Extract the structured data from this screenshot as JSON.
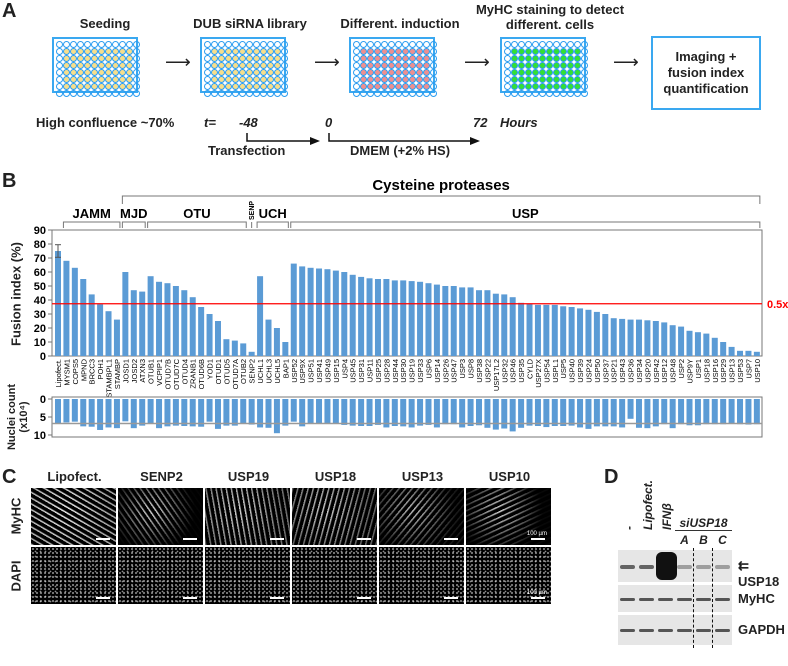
{
  "panelA": {
    "label": "A",
    "steps": [
      {
        "title": "Seeding",
        "fill": "#f7de8c",
        "caption": "High confluence ~70%"
      },
      {
        "title": "DUB siRNA library",
        "fill": "#f7de8c"
      },
      {
        "title": "Different. induction",
        "fill": "#ee8f8f"
      },
      {
        "title": "MyHC staining to detect different. cells",
        "fill": "#33e033"
      }
    ],
    "final_box": "Imaging + fusion index quantification",
    "timeline": {
      "t_label": "t=",
      "t1": "-48",
      "t2": "0",
      "t3": "72",
      "unit": "Hours",
      "phase1": "Transfection",
      "phase2": "DMEM (+2% HS)"
    }
  },
  "panelB": {
    "label": "B"
  },
  "chart_data": [
    {
      "type": "bar",
      "title": "",
      "ylabel": "Fusion index (%)",
      "ylim": [
        0,
        90
      ],
      "yticks": [
        "0",
        "10",
        "20",
        "30",
        "40",
        "50",
        "60",
        "70",
        "80",
        "90"
      ],
      "threshold": {
        "value": 37.3,
        "label": "0.5x",
        "color": "#ff0000"
      },
      "bar_color": "#5b9bd5",
      "error_bar_first": 4.5,
      "categories": [
        "Lipofect.",
        "MYSM1",
        "COPS5",
        "MPND",
        "BRCC3",
        "POH1",
        "STAMBPL1",
        "STAMBP",
        "JOSD1",
        "JOSD2",
        "ATXN3",
        "OTUB1",
        "VCPIP1",
        "OTUD7B",
        "OTUD7C",
        "OTUD4",
        "ZRANB1",
        "OTUD6B",
        "YOD1",
        "OTUD1",
        "OTUD5",
        "OTUD7A",
        "OTUB2",
        "SENP2",
        "UCHL1",
        "UCHL3",
        "UCHL5",
        "BAP1",
        "USP52",
        "USP9X",
        "USP51",
        "USP41",
        "USP49",
        "USP15",
        "USP4",
        "USP45",
        "USP31",
        "USP11",
        "USP25",
        "USP28",
        "USP44",
        "USP30",
        "USP19",
        "USP33",
        "USP6",
        "USP14",
        "USP26",
        "USP47",
        "USP3",
        "USP8",
        "USP38",
        "USP22",
        "USP17L2",
        "USP32",
        "USP46",
        "USP35",
        "CYLD",
        "USP27X",
        "USP54",
        "USPL1",
        "USP5",
        "USP40",
        "USP39",
        "USP24",
        "USP50",
        "USP37",
        "USP21",
        "USP43",
        "USP36",
        "USP34",
        "USP20",
        "USP42",
        "USP12",
        "USP48",
        "USP2",
        "USP9Y",
        "USP1",
        "USP18",
        "USP16",
        "USP29",
        "USP13",
        "USP53",
        "USP7",
        "USP10"
      ],
      "values": [
        75,
        68,
        63,
        55,
        44,
        37,
        32,
        26,
        60,
        47,
        46,
        57,
        53,
        52,
        50,
        47,
        42,
        35,
        30,
        25,
        12,
        11,
        9,
        3,
        57,
        26,
        20,
        10,
        66,
        64,
        63,
        62.5,
        62,
        61,
        60,
        58,
        56.5,
        55.5,
        55,
        55,
        54,
        54,
        53.5,
        53,
        52,
        51,
        50,
        50,
        49,
        49,
        47,
        47,
        44.5,
        44,
        42,
        38,
        37.5,
        36.5,
        36.5,
        36.5,
        35.5,
        35,
        34,
        33,
        31.5,
        30,
        27,
        26.5,
        26,
        26,
        25.5,
        25,
        24,
        22,
        21,
        18,
        17,
        16,
        13,
        10,
        6.5,
        3.7,
        3.7,
        3
      ],
      "families": [
        {
          "name": "JAMM",
          "from": 1,
          "to": 7
        },
        {
          "name": "MJD",
          "from": 8,
          "to": 10
        },
        {
          "name": "OTU",
          "from": 11,
          "to": 22
        },
        {
          "name": "SENP",
          "from": 23,
          "to": 23
        },
        {
          "name": "UCH",
          "from": 24,
          "to": 27
        },
        {
          "name": "USP",
          "from": 28,
          "to": 83
        }
      ],
      "superfamily": {
        "name": "Cysteine proteases",
        "from": 8,
        "to": 83
      }
    },
    {
      "type": "bar",
      "ylabel": "Nuclei count (x10⁴)",
      "ylabel_main": "Nuclei count",
      "ylabel_unit": "(x10⁴)",
      "ylim": [
        0,
        10
      ],
      "yticks": [
        "0",
        "5",
        "10"
      ],
      "reference_value": 6.8,
      "values": [
        6.8,
        6.5,
        6.3,
        7.6,
        7.7,
        8.6,
        7.9,
        8.1,
        6.2,
        8.1,
        7.4,
        6.9,
        8.1,
        7.6,
        7.4,
        7.5,
        7.6,
        7.7,
        6.3,
        8.3,
        7.4,
        7.4,
        6.9,
        7.1,
        7.9,
        8.0,
        9.5,
        7.4,
        6.3,
        7.6,
        6.8,
        6.9,
        6.9,
        6.9,
        7.2,
        7.4,
        7.5,
        7.5,
        7.2,
        7.9,
        7.5,
        7.6,
        7.9,
        7.4,
        7.2,
        7.9,
        7.0,
        7.0,
        7.9,
        7.5,
        7.3,
        8.0,
        8.5,
        8.2,
        9.0,
        8.0,
        7.4,
        7.5,
        7.8,
        7.5,
        7.5,
        7.4,
        7.9,
        8.3,
        7.6,
        7.6,
        7.6,
        7.9,
        5.5,
        8.0,
        8.1,
        7.6,
        7.0,
        8.1,
        7.0,
        7.3,
        7.3,
        7.0,
        7.0,
        7.0,
        6.9,
        7.0,
        7.1,
        7.0
      ]
    }
  ],
  "panelC": {
    "label": "C",
    "columns": [
      "Lipofect.",
      "SENP2",
      "USP19",
      "USP18",
      "USP13",
      "USP10"
    ],
    "rows": [
      "MyHC",
      "DAPI"
    ],
    "scale_bar": "100 µm",
    "myhc_intensity": [
      0.9,
      0.15,
      0.75,
      0.7,
      0.35,
      0.2
    ]
  },
  "panelD": {
    "label": "D",
    "lanes": [
      "-",
      "Lipofect.",
      "IFNβ"
    ],
    "si_group": "siUSP18",
    "si_lanes": [
      "A",
      "B",
      "C"
    ],
    "blots": [
      "USP18",
      "MyHC",
      "GAPDH"
    ]
  }
}
